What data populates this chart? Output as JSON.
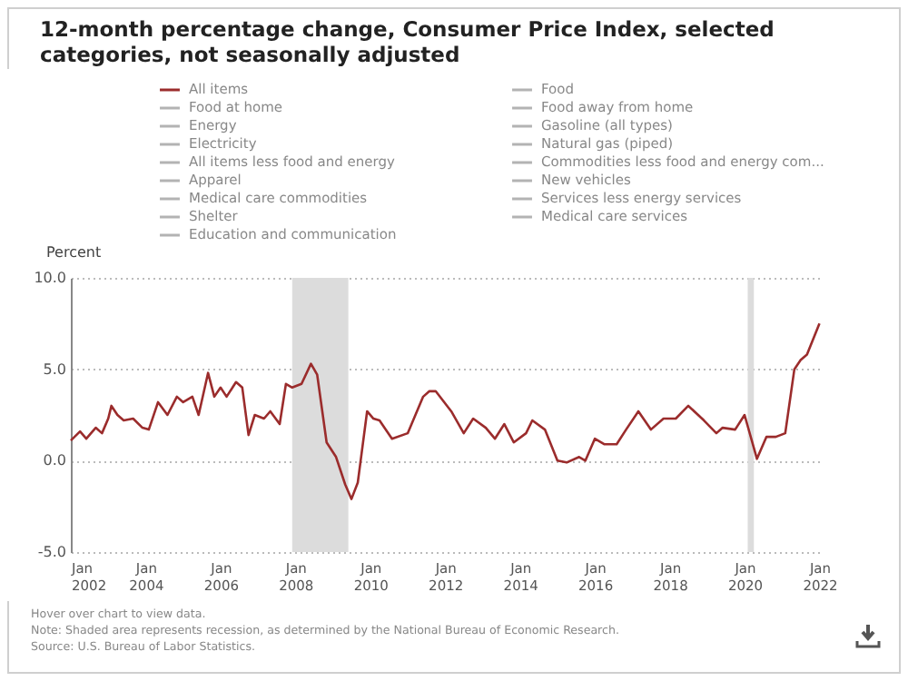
{
  "chart_data": {
    "type": "line",
    "title": "12-month percentage change, Consumer Price Index, selected categories, not seasonally adjusted",
    "ylabel": "Percent",
    "xlim": [
      "2002-01",
      "2022-02"
    ],
    "xticks": [
      {
        "value": "2002-01",
        "label": "Jan 2002"
      },
      {
        "value": "2004-01",
        "label": "Jan 2004"
      },
      {
        "value": "2006-01",
        "label": "Jan 2006"
      },
      {
        "value": "2008-01",
        "label": "Jan 2008"
      },
      {
        "value": "2010-01",
        "label": "Jan 2010"
      },
      {
        "value": "2012-01",
        "label": "Jan 2012"
      },
      {
        "value": "2014-01",
        "label": "Jan 2014"
      },
      {
        "value": "2016-01",
        "label": "Jan 2016"
      },
      {
        "value": "2018-01",
        "label": "Jan 2018"
      },
      {
        "value": "2020-01",
        "label": "Jan 2020"
      },
      {
        "value": "2022-01",
        "label": "Jan 2022"
      }
    ],
    "ylim": [
      -5,
      10
    ],
    "yticks": [
      {
        "value": -5,
        "label": "-5.0"
      },
      {
        "value": 0,
        "label": "0.0"
      },
      {
        "value": 5,
        "label": "5.0"
      },
      {
        "value": 10,
        "label": "10.0"
      }
    ],
    "grid": "y",
    "legend": "top",
    "marker": "none",
    "line_style": "solid",
    "x": [
      "2002-01",
      "2002-04",
      "2002-06",
      "2002-08",
      "2002-09",
      "2002-11",
      "2003-01",
      "2003-02",
      "2003-04",
      "2003-06",
      "2003-09",
      "2003-12",
      "2004-02",
      "2004-05",
      "2004-08",
      "2004-11",
      "2005-01",
      "2005-04",
      "2005-06",
      "2005-09",
      "2005-11",
      "2006-01",
      "2006-03",
      "2006-06",
      "2006-08",
      "2006-10",
      "2006-12",
      "2007-03",
      "2007-05",
      "2007-08",
      "2007-10",
      "2007-12",
      "2008-03",
      "2008-06",
      "2008-08",
      "2008-11",
      "2009-02",
      "2009-05",
      "2009-07",
      "2009-09",
      "2009-12",
      "2010-02",
      "2010-04",
      "2010-08",
      "2011-01",
      "2011-06",
      "2011-08",
      "2011-10",
      "2012-03",
      "2012-07",
      "2012-10",
      "2013-02",
      "2013-05",
      "2013-08",
      "2013-11",
      "2014-03",
      "2014-05",
      "2014-09",
      "2015-01",
      "2015-04",
      "2015-08",
      "2015-10",
      "2016-01",
      "2016-04",
      "2016-08",
      "2016-11",
      "2017-03",
      "2017-07",
      "2017-11",
      "2018-03",
      "2018-07",
      "2018-12",
      "2019-04",
      "2019-06",
      "2019-10",
      "2020-01",
      "2020-05",
      "2020-08",
      "2020-11",
      "2021-02",
      "2021-05",
      "2021-07",
      "2021-09",
      "2022-01"
    ],
    "series": [
      {
        "name": "All items",
        "color": "#9b2c2c",
        "values": [
          1.1,
          1.6,
          1.2,
          1.6,
          1.8,
          1.5,
          2.3,
          3.0,
          2.5,
          2.2,
          2.3,
          1.8,
          1.7,
          3.2,
          2.5,
          3.5,
          3.2,
          3.5,
          2.5,
          4.8,
          3.5,
          4.0,
          3.5,
          4.3,
          4.0,
          1.4,
          2.5,
          2.3,
          2.7,
          2.0,
          4.2,
          4.0,
          4.2,
          5.3,
          4.7,
          1.0,
          0.2,
          -1.3,
          -2.1,
          -1.2,
          2.7,
          2.3,
          2.2,
          1.2,
          1.5,
          3.5,
          3.8,
          3.8,
          2.7,
          1.5,
          2.3,
          1.8,
          1.2,
          2.0,
          1.0,
          1.5,
          2.2,
          1.7,
          0.0,
          -0.1,
          0.2,
          0.0,
          1.2,
          0.9,
          0.9,
          1.7,
          2.7,
          1.7,
          2.3,
          2.3,
          3.0,
          2.2,
          1.5,
          1.8,
          1.7,
          2.5,
          0.1,
          1.3,
          1.3,
          1.5,
          5.0,
          5.5,
          5.8,
          7.5
        ]
      },
      {
        "name": "Food at home",
        "color": "#b3b3b3",
        "values": [
          null,
          null,
          null,
          null,
          null,
          null,
          null,
          null,
          null,
          null,
          null,
          null,
          null,
          null,
          null,
          null,
          null,
          null,
          null,
          null,
          null,
          null,
          null,
          null,
          null,
          null,
          null,
          null,
          null,
          null,
          null,
          null,
          null,
          null,
          null,
          null,
          null,
          null,
          null,
          null,
          null,
          null,
          null,
          null,
          null,
          null,
          null,
          null,
          null,
          null,
          null,
          null,
          null,
          null,
          null,
          null,
          null,
          null,
          null,
          null,
          null,
          null,
          null,
          null,
          null,
          null,
          null,
          null,
          null,
          null,
          null,
          null,
          null,
          null,
          null,
          null,
          null,
          null,
          null,
          null,
          null,
          null,
          null,
          null
        ]
      },
      {
        "name": "Energy",
        "color": "#b3b3b3",
        "values": [
          null,
          null,
          null,
          null,
          null,
          null,
          null,
          null,
          null,
          null,
          null,
          null,
          null,
          null,
          null,
          null,
          null,
          null,
          null,
          null,
          null,
          null,
          null,
          null,
          null,
          null,
          null,
          null,
          null,
          null,
          null,
          null,
          null,
          null,
          null,
          null,
          null,
          null,
          null,
          null,
          null,
          null,
          null,
          null,
          null,
          null,
          null,
          null,
          null,
          null,
          null,
          null,
          null,
          null,
          null,
          null,
          null,
          null,
          null,
          null,
          null,
          null,
          null,
          null,
          null,
          null,
          null,
          null,
          null,
          null,
          null,
          null,
          null,
          null,
          null,
          null,
          null,
          null,
          null,
          null,
          null,
          null,
          null,
          null
        ]
      },
      {
        "name": "Electricity",
        "color": "#b3b3b3",
        "values": [
          null,
          null,
          null,
          null,
          null,
          null,
          null,
          null,
          null,
          null,
          null,
          null,
          null,
          null,
          null,
          null,
          null,
          null,
          null,
          null,
          null,
          null,
          null,
          null,
          null,
          null,
          null,
          null,
          null,
          null,
          null,
          null,
          null,
          null,
          null,
          null,
          null,
          null,
          null,
          null,
          null,
          null,
          null,
          null,
          null,
          null,
          null,
          null,
          null,
          null,
          null,
          null,
          null,
          null,
          null,
          null,
          null,
          null,
          null,
          null,
          null,
          null,
          null,
          null,
          null,
          null,
          null,
          null,
          null,
          null,
          null,
          null,
          null,
          null,
          null,
          null,
          null,
          null,
          null,
          null,
          null,
          null,
          null,
          null
        ]
      },
      {
        "name": "All items less food and energy",
        "color": "#b3b3b3",
        "values": [
          null,
          null,
          null,
          null,
          null,
          null,
          null,
          null,
          null,
          null,
          null,
          null,
          null,
          null,
          null,
          null,
          null,
          null,
          null,
          null,
          null,
          null,
          null,
          null,
          null,
          null,
          null,
          null,
          null,
          null,
          null,
          null,
          null,
          null,
          null,
          null,
          null,
          null,
          null,
          null,
          null,
          null,
          null,
          null,
          null,
          null,
          null,
          null,
          null,
          null,
          null,
          null,
          null,
          null,
          null,
          null,
          null,
          null,
          null,
          null,
          null,
          null,
          null,
          null,
          null,
          null,
          null,
          null,
          null,
          null,
          null,
          null,
          null,
          null,
          null,
          null,
          null,
          null,
          null,
          null,
          null,
          null,
          null,
          null
        ]
      },
      {
        "name": "Apparel",
        "color": "#b3b3b3",
        "values": [
          null,
          null,
          null,
          null,
          null,
          null,
          null,
          null,
          null,
          null,
          null,
          null,
          null,
          null,
          null,
          null,
          null,
          null,
          null,
          null,
          null,
          null,
          null,
          null,
          null,
          null,
          null,
          null,
          null,
          null,
          null,
          null,
          null,
          null,
          null,
          null,
          null,
          null,
          null,
          null,
          null,
          null,
          null,
          null,
          null,
          null,
          null,
          null,
          null,
          null,
          null,
          null,
          null,
          null,
          null,
          null,
          null,
          null,
          null,
          null,
          null,
          null,
          null,
          null,
          null,
          null,
          null,
          null,
          null,
          null,
          null,
          null,
          null,
          null,
          null,
          null,
          null,
          null,
          null,
          null,
          null,
          null,
          null,
          null
        ]
      },
      {
        "name": "Medical care commodities",
        "color": "#b3b3b3",
        "values": [
          null,
          null,
          null,
          null,
          null,
          null,
          null,
          null,
          null,
          null,
          null,
          null,
          null,
          null,
          null,
          null,
          null,
          null,
          null,
          null,
          null,
          null,
          null,
          null,
          null,
          null,
          null,
          null,
          null,
          null,
          null,
          null,
          null,
          null,
          null,
          null,
          null,
          null,
          null,
          null,
          null,
          null,
          null,
          null,
          null,
          null,
          null,
          null,
          null,
          null,
          null,
          null,
          null,
          null,
          null,
          null,
          null,
          null,
          null,
          null,
          null,
          null,
          null,
          null,
          null,
          null,
          null,
          null,
          null,
          null,
          null,
          null,
          null,
          null,
          null,
          null,
          null,
          null,
          null,
          null,
          null,
          null,
          null,
          null
        ]
      },
      {
        "name": "Shelter",
        "color": "#b3b3b3",
        "values": [
          null,
          null,
          null,
          null,
          null,
          null,
          null,
          null,
          null,
          null,
          null,
          null,
          null,
          null,
          null,
          null,
          null,
          null,
          null,
          null,
          null,
          null,
          null,
          null,
          null,
          null,
          null,
          null,
          null,
          null,
          null,
          null,
          null,
          null,
          null,
          null,
          null,
          null,
          null,
          null,
          null,
          null,
          null,
          null,
          null,
          null,
          null,
          null,
          null,
          null,
          null,
          null,
          null,
          null,
          null,
          null,
          null,
          null,
          null,
          null,
          null,
          null,
          null,
          null,
          null,
          null,
          null,
          null,
          null,
          null,
          null,
          null,
          null,
          null,
          null,
          null,
          null,
          null,
          null,
          null,
          null,
          null,
          null,
          null
        ]
      },
      {
        "name": "Education and communication",
        "color": "#b3b3b3",
        "values": [
          null,
          null,
          null,
          null,
          null,
          null,
          null,
          null,
          null,
          null,
          null,
          null,
          null,
          null,
          null,
          null,
          null,
          null,
          null,
          null,
          null,
          null,
          null,
          null,
          null,
          null,
          null,
          null,
          null,
          null,
          null,
          null,
          null,
          null,
          null,
          null,
          null,
          null,
          null,
          null,
          null,
          null,
          null,
          null,
          null,
          null,
          null,
          null,
          null,
          null,
          null,
          null,
          null,
          null,
          null,
          null,
          null,
          null,
          null,
          null,
          null,
          null,
          null,
          null,
          null,
          null,
          null,
          null,
          null,
          null,
          null,
          null,
          null,
          null,
          null,
          null,
          null,
          null,
          null,
          null,
          null,
          null,
          null,
          null
        ]
      },
      {
        "name": "Food",
        "color": "#b3b3b3",
        "values": [
          null,
          null,
          null,
          null,
          null,
          null,
          null,
          null,
          null,
          null,
          null,
          null,
          null,
          null,
          null,
          null,
          null,
          null,
          null,
          null,
          null,
          null,
          null,
          null,
          null,
          null,
          null,
          null,
          null,
          null,
          null,
          null,
          null,
          null,
          null,
          null,
          null,
          null,
          null,
          null,
          null,
          null,
          null,
          null,
          null,
          null,
          null,
          null,
          null,
          null,
          null,
          null,
          null,
          null,
          null,
          null,
          null,
          null,
          null,
          null,
          null,
          null,
          null,
          null,
          null,
          null,
          null,
          null,
          null,
          null,
          null,
          null,
          null,
          null,
          null,
          null,
          null,
          null,
          null,
          null,
          null,
          null,
          null,
          null
        ]
      },
      {
        "name": "Food away from home",
        "color": "#b3b3b3",
        "values": [
          null,
          null,
          null,
          null,
          null,
          null,
          null,
          null,
          null,
          null,
          null,
          null,
          null,
          null,
          null,
          null,
          null,
          null,
          null,
          null,
          null,
          null,
          null,
          null,
          null,
          null,
          null,
          null,
          null,
          null,
          null,
          null,
          null,
          null,
          null,
          null,
          null,
          null,
          null,
          null,
          null,
          null,
          null,
          null,
          null,
          null,
          null,
          null,
          null,
          null,
          null,
          null,
          null,
          null,
          null,
          null,
          null,
          null,
          null,
          null,
          null,
          null,
          null,
          null,
          null,
          null,
          null,
          null,
          null,
          null,
          null,
          null,
          null,
          null,
          null,
          null,
          null,
          null,
          null,
          null,
          null,
          null,
          null,
          null
        ]
      },
      {
        "name": "Gasoline (all types)",
        "color": "#b3b3b3",
        "values": [
          null,
          null,
          null,
          null,
          null,
          null,
          null,
          null,
          null,
          null,
          null,
          null,
          null,
          null,
          null,
          null,
          null,
          null,
          null,
          null,
          null,
          null,
          null,
          null,
          null,
          null,
          null,
          null,
          null,
          null,
          null,
          null,
          null,
          null,
          null,
          null,
          null,
          null,
          null,
          null,
          null,
          null,
          null,
          null,
          null,
          null,
          null,
          null,
          null,
          null,
          null,
          null,
          null,
          null,
          null,
          null,
          null,
          null,
          null,
          null,
          null,
          null,
          null,
          null,
          null,
          null,
          null,
          null,
          null,
          null,
          null,
          null,
          null,
          null,
          null,
          null,
          null,
          null,
          null,
          null,
          null,
          null,
          null,
          null
        ]
      },
      {
        "name": "Natural gas (piped)",
        "color": "#b3b3b3",
        "values": [
          null,
          null,
          null,
          null,
          null,
          null,
          null,
          null,
          null,
          null,
          null,
          null,
          null,
          null,
          null,
          null,
          null,
          null,
          null,
          null,
          null,
          null,
          null,
          null,
          null,
          null,
          null,
          null,
          null,
          null,
          null,
          null,
          null,
          null,
          null,
          null,
          null,
          null,
          null,
          null,
          null,
          null,
          null,
          null,
          null,
          null,
          null,
          null,
          null,
          null,
          null,
          null,
          null,
          null,
          null,
          null,
          null,
          null,
          null,
          null,
          null,
          null,
          null,
          null,
          null,
          null,
          null,
          null,
          null,
          null,
          null,
          null,
          null,
          null,
          null,
          null,
          null,
          null,
          null,
          null,
          null,
          null,
          null,
          null
        ]
      },
      {
        "name": "Commodities less food and energy com...",
        "color": "#b3b3b3",
        "values": [
          null,
          null,
          null,
          null,
          null,
          null,
          null,
          null,
          null,
          null,
          null,
          null,
          null,
          null,
          null,
          null,
          null,
          null,
          null,
          null,
          null,
          null,
          null,
          null,
          null,
          null,
          null,
          null,
          null,
          null,
          null,
          null,
          null,
          null,
          null,
          null,
          null,
          null,
          null,
          null,
          null,
          null,
          null,
          null,
          null,
          null,
          null,
          null,
          null,
          null,
          null,
          null,
          null,
          null,
          null,
          null,
          null,
          null,
          null,
          null,
          null,
          null,
          null,
          null,
          null,
          null,
          null,
          null,
          null,
          null,
          null,
          null,
          null,
          null,
          null,
          null,
          null,
          null,
          null,
          null,
          null,
          null,
          null,
          null
        ]
      },
      {
        "name": "New vehicles",
        "color": "#b3b3b3",
        "values": [
          null,
          null,
          null,
          null,
          null,
          null,
          null,
          null,
          null,
          null,
          null,
          null,
          null,
          null,
          null,
          null,
          null,
          null,
          null,
          null,
          null,
          null,
          null,
          null,
          null,
          null,
          null,
          null,
          null,
          null,
          null,
          null,
          null,
          null,
          null,
          null,
          null,
          null,
          null,
          null,
          null,
          null,
          null,
          null,
          null,
          null,
          null,
          null,
          null,
          null,
          null,
          null,
          null,
          null,
          null,
          null,
          null,
          null,
          null,
          null,
          null,
          null,
          null,
          null,
          null,
          null,
          null,
          null,
          null,
          null,
          null,
          null,
          null,
          null,
          null,
          null,
          null,
          null,
          null,
          null,
          null,
          null,
          null,
          null
        ]
      },
      {
        "name": "Services less energy services",
        "color": "#b3b3b3",
        "values": [
          null,
          null,
          null,
          null,
          null,
          null,
          null,
          null,
          null,
          null,
          null,
          null,
          null,
          null,
          null,
          null,
          null,
          null,
          null,
          null,
          null,
          null,
          null,
          null,
          null,
          null,
          null,
          null,
          null,
          null,
          null,
          null,
          null,
          null,
          null,
          null,
          null,
          null,
          null,
          null,
          null,
          null,
          null,
          null,
          null,
          null,
          null,
          null,
          null,
          null,
          null,
          null,
          null,
          null,
          null,
          null,
          null,
          null,
          null,
          null,
          null,
          null,
          null,
          null,
          null,
          null,
          null,
          null,
          null,
          null,
          null,
          null,
          null,
          null,
          null,
          null,
          null,
          null,
          null,
          null,
          null,
          null,
          null,
          null
        ]
      },
      {
        "name": "Medical care services",
        "color": "#b3b3b3",
        "values": [
          null,
          null,
          null,
          null,
          null,
          null,
          null,
          null,
          null,
          null,
          null,
          null,
          null,
          null,
          null,
          null,
          null,
          null,
          null,
          null,
          null,
          null,
          null,
          null,
          null,
          null,
          null,
          null,
          null,
          null,
          null,
          null,
          null,
          null,
          null,
          null,
          null,
          null,
          null,
          null,
          null,
          null,
          null,
          null,
          null,
          null,
          null,
          null,
          null,
          null,
          null,
          null,
          null,
          null,
          null,
          null,
          null,
          null,
          null,
          null,
          null,
          null,
          null,
          null,
          null,
          null,
          null,
          null,
          null,
          null,
          null,
          null,
          null,
          null,
          null,
          null,
          null,
          null,
          null,
          null,
          null,
          null,
          null,
          null
        ]
      }
    ],
    "bands": [
      {
        "axis": "x",
        "from": "2007-12",
        "to": "2009-06",
        "color": "#dcdcdc"
      },
      {
        "axis": "x",
        "from": "2020-02",
        "to": "2020-04",
        "color": "#dcdcdc"
      }
    ],
    "annotations": [
      "Hover over chart to view data.",
      "Note: Shaded area represents recession, as determined by the National Bureau of Economic Research.",
      "Source: U.S. Bureau of Labor Statistics."
    ]
  }
}
